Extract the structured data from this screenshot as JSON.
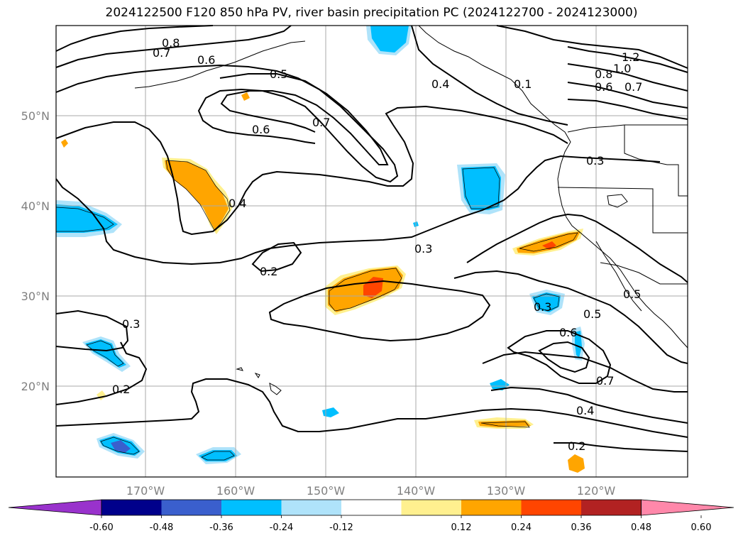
{
  "title": "2024122500 F120 850 hPa PV, river basin precipitation PC (2024122700 - 2024123000)",
  "lat_labels": [
    "50°N",
    "40°N",
    "30°N",
    "20°N"
  ],
  "lon_labels": [
    "170°W",
    "160°W",
    "150°W",
    "140°W",
    "130°W",
    "120°W"
  ],
  "contour_labels": [
    "0.8",
    "0.7",
    "0.6",
    "0.5",
    "0.7",
    "0.6",
    "0.4",
    "0.4",
    "1.2",
    "1.0",
    "0.8",
    "0.6",
    "0.7",
    "0.3",
    "0.3",
    "0.2",
    "0.5",
    "0.3",
    "0.5",
    "0.6",
    "0.7",
    "0.4",
    "0.2",
    "0.3",
    "0.2",
    "0.1"
  ],
  "colorbar": {
    "ticks": [
      "-0.60",
      "-0.48",
      "-0.36",
      "-0.24",
      "-0.12",
      "0.12",
      "0.24",
      "0.36",
      "0.48",
      "0.60"
    ],
    "colors": [
      "#9932cc",
      "#00008b",
      "#3a5fcd",
      "#00bfff",
      "#afe3fa",
      "#ffffff",
      "#fff08f",
      "#ffa500",
      "#ff4500",
      "#b22222",
      "#ff88aa"
    ]
  }
}
